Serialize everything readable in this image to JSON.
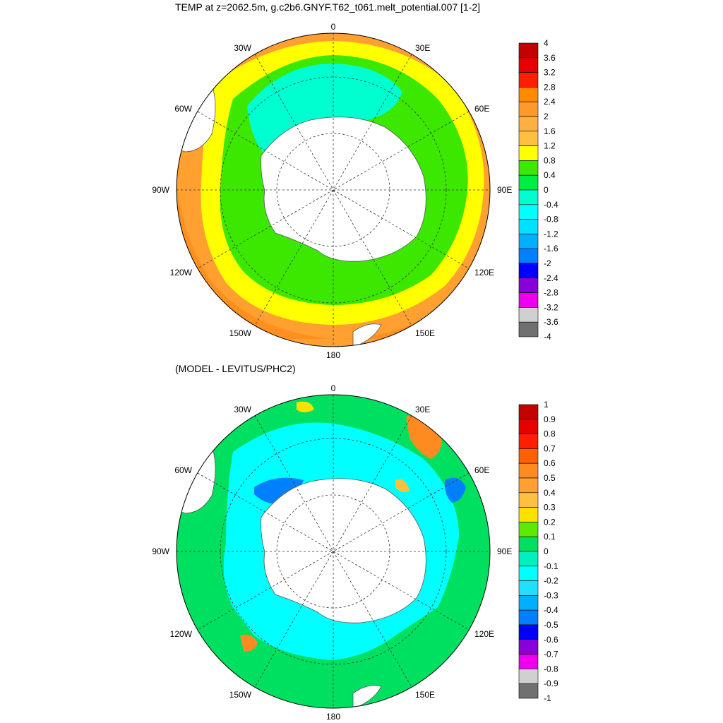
{
  "panels": [
    {
      "title": "TEMP at z=2062.5m, g.c2b6.GNYF.T62_t061.melt_potential.007 [1-2]",
      "colorbar_labels": [
        "4",
        "3.6",
        "3.2",
        "2.8",
        "2.4",
        "2",
        "1.6",
        "1.2",
        "0.8",
        "0.4",
        "0",
        "-0.4",
        "-0.8",
        "-1.2",
        "-1.6",
        "-2",
        "-2.4",
        "-2.8",
        "-3.2",
        "-3.6",
        "-4"
      ],
      "colorbar_colors": [
        "#c40000",
        "#e60000",
        "#ff1e00",
        "#ff8a00",
        "#ff9a28",
        "#ffb040",
        "#ffc040",
        "#ffff00",
        "#3ce800",
        "#00ee44",
        "#00ffd0",
        "#00ffff",
        "#00e0ff",
        "#00b0ff",
        "#0080ff",
        "#0000ff",
        "#8a00d8",
        "#ee00ee",
        "#d0d0d0",
        "#707070"
      ]
    },
    {
      "title": "(MODEL - LEVITUS/PHC2)",
      "colorbar_labels": [
        "1",
        "0.9",
        "0.8",
        "0.7",
        "0.6",
        "0.5",
        "0.4",
        "0.3",
        "0.2",
        "0.1",
        "0",
        "-0.1",
        "-0.2",
        "-0.3",
        "-0.4",
        "-0.5",
        "-0.6",
        "-0.7",
        "-0.8",
        "-0.9",
        "-1"
      ],
      "colorbar_colors": [
        "#c40000",
        "#e60000",
        "#ff1e00",
        "#ff6000",
        "#ff8a20",
        "#ffa030",
        "#ffc040",
        "#ffe000",
        "#60e800",
        "#00e060",
        "#00f0c0",
        "#00ffff",
        "#20e0ff",
        "#00b0ff",
        "#0080ff",
        "#0000ff",
        "#8a00d8",
        "#ee00ee",
        "#d0d0d0",
        "#707070"
      ]
    }
  ],
  "map_labels": {
    "top": "0",
    "bottom": "180",
    "left": "90W",
    "right": "90E",
    "upper_left_1": "30W",
    "upper_left_2": "60W",
    "upper_right_1": "30E",
    "upper_right_2": "60E",
    "lower_left_1": "120W",
    "lower_left_2": "150W",
    "lower_right_1": "120E",
    "lower_right_2": "150E"
  }
}
